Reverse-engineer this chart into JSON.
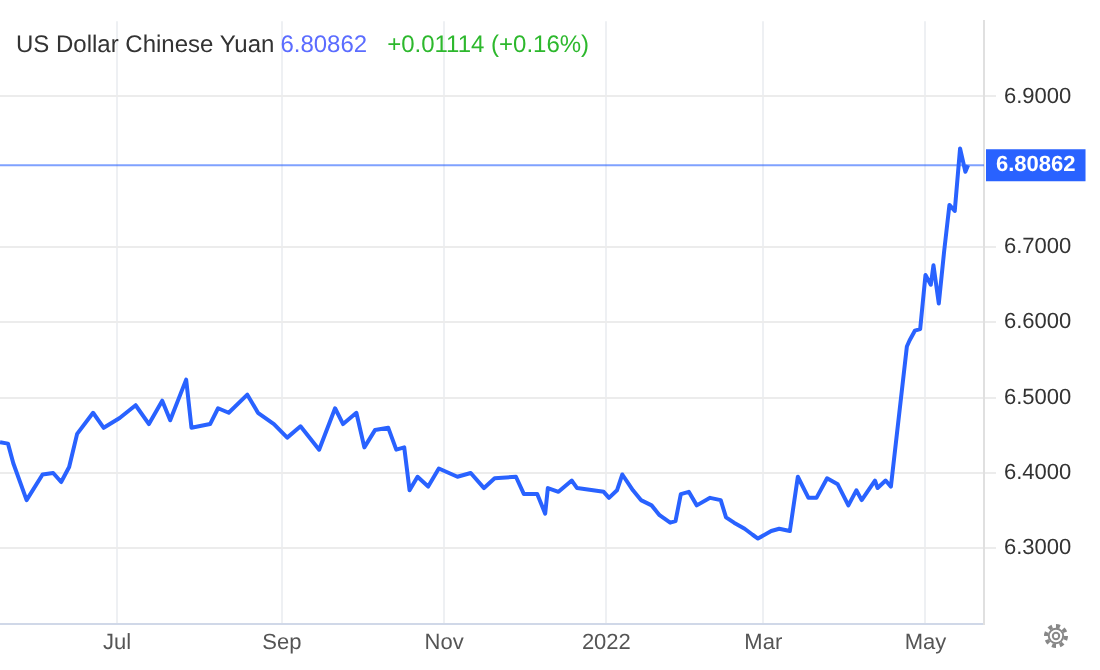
{
  "chart_data": {
    "type": "line",
    "title": "US Dollar Chinese Yuan",
    "annotations": [
      "6.80862",
      "+0.01114 (+0.16%)"
    ],
    "xlim": [
      "2021-05-18",
      "2022-05-23"
    ],
    "xticks": [
      {
        "value": "2021-07-01",
        "label": "Jul"
      },
      {
        "value": "2021-09-01",
        "label": "Sep"
      },
      {
        "value": "2021-11-01",
        "label": "Nov"
      },
      {
        "value": "2022-01-01",
        "label": "2022"
      },
      {
        "value": "2022-03-01",
        "label": "Mar"
      },
      {
        "value": "2022-05-01",
        "label": "May"
      }
    ],
    "ylim": [
      6.2,
      7.0
    ],
    "yticks": [
      {
        "value": 6.3,
        "label": "6.3000"
      },
      {
        "value": 6.4,
        "label": "6.4000"
      },
      {
        "value": 6.5,
        "label": "6.5000"
      },
      {
        "value": 6.6,
        "label": "6.6000"
      },
      {
        "value": 6.7,
        "label": "6.7000"
      },
      {
        "value": 6.9,
        "label": "6.9000"
      }
    ],
    "grid": true,
    "legend": false,
    "marker": "none",
    "line_style": "solid",
    "ref_lines": [
      {
        "axis": "y",
        "value": 6.80862,
        "label": "6.80862",
        "color": "#2962ff"
      }
    ],
    "series": [
      {
        "color": "#2962ff",
        "x": [
          "2021-05-18",
          "2021-05-21",
          "2021-05-23",
          "2021-05-28",
          "2021-06-03",
          "2021-06-07",
          "2021-06-10",
          "2021-06-13",
          "2021-06-16",
          "2021-06-22",
          "2021-06-26",
          "2021-07-02",
          "2021-07-08",
          "2021-07-13",
          "2021-07-18",
          "2021-07-21",
          "2021-07-27",
          "2021-07-29",
          "2021-08-05",
          "2021-08-08",
          "2021-08-12",
          "2021-08-19",
          "2021-08-23",
          "2021-08-29",
          "2021-09-03",
          "2021-09-08",
          "2021-09-15",
          "2021-09-21",
          "2021-09-24",
          "2021-09-29",
          "2021-10-02",
          "2021-10-06",
          "2021-10-11",
          "2021-10-14",
          "2021-10-17",
          "2021-10-19",
          "2021-10-22",
          "2021-10-26",
          "2021-10-30",
          "2021-11-06",
          "2021-11-11",
          "2021-11-16",
          "2021-11-20",
          "2021-11-28",
          "2021-12-01",
          "2021-12-06",
          "2021-12-09",
          "2021-12-10",
          "2021-12-14",
          "2021-12-19",
          "2021-12-21",
          "2021-12-31",
          "2022-01-02",
          "2022-01-05",
          "2022-01-07",
          "2022-01-11",
          "2022-01-14",
          "2022-01-18",
          "2022-01-21",
          "2022-01-25",
          "2022-01-27",
          "2022-01-29",
          "2022-02-01",
          "2022-02-04",
          "2022-02-09",
          "2022-02-13",
          "2022-02-15",
          "2022-02-18",
          "2022-02-22",
          "2022-02-25",
          "2022-02-27",
          "2022-03-04",
          "2022-03-07",
          "2022-03-11",
          "2022-03-14",
          "2022-03-18",
          "2022-03-21",
          "2022-03-25",
          "2022-03-29",
          "2022-04-02",
          "2022-04-05",
          "2022-04-07",
          "2022-04-12",
          "2022-04-13",
          "2022-04-16",
          "2022-04-18",
          "2022-04-24",
          "2022-04-25",
          "2022-04-27",
          "2022-04-29",
          "2022-05-01",
          "2022-05-03",
          "2022-05-04",
          "2022-05-06",
          "2022-05-08",
          "2022-05-10",
          "2022-05-12",
          "2022-05-14",
          "2022-05-16",
          "2022-05-17"
        ],
        "values": [
          6.441,
          6.439,
          6.413,
          6.364,
          6.398,
          6.4,
          6.388,
          6.408,
          6.452,
          6.48,
          6.46,
          6.473,
          6.49,
          6.465,
          6.496,
          6.47,
          6.524,
          6.46,
          6.465,
          6.486,
          6.48,
          6.504,
          6.48,
          6.465,
          6.447,
          6.462,
          6.431,
          6.486,
          6.465,
          6.48,
          6.434,
          6.457,
          6.46,
          6.431,
          6.434,
          6.377,
          6.395,
          6.382,
          6.406,
          6.395,
          6.4,
          6.38,
          6.393,
          6.395,
          6.372,
          6.372,
          6.346,
          6.38,
          6.375,
          6.39,
          6.38,
          6.375,
          6.367,
          6.377,
          6.398,
          6.377,
          6.364,
          6.357,
          6.344,
          6.334,
          6.336,
          6.372,
          6.375,
          6.357,
          6.367,
          6.364,
          6.341,
          6.334,
          6.326,
          6.318,
          6.313,
          6.323,
          6.326,
          6.323,
          6.395,
          6.367,
          6.367,
          6.393,
          6.385,
          6.357,
          6.377,
          6.364,
          6.39,
          6.38,
          6.39,
          6.382,
          6.568,
          6.576,
          6.589,
          6.591,
          6.663,
          6.65,
          6.676,
          6.625,
          6.694,
          6.756,
          6.748,
          6.831,
          6.8,
          6.80862
        ]
      }
    ]
  }
}
